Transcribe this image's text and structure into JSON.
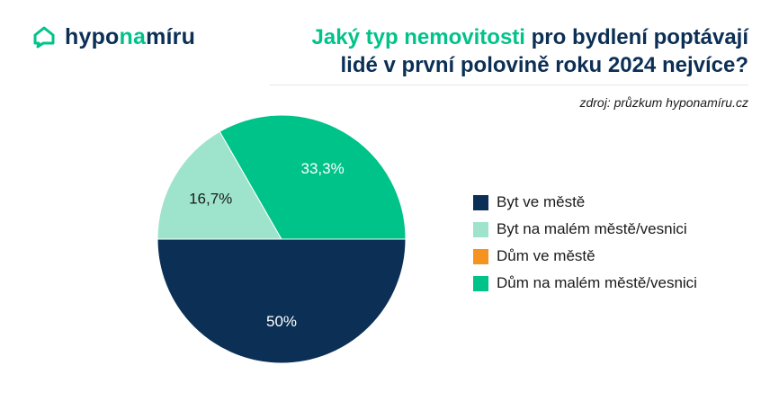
{
  "logo": {
    "text_part1": "hypo",
    "text_part2": "na",
    "text_part3": "míru"
  },
  "title": {
    "highlight": "Jaký typ nemovitosti",
    "rest_line1": " pro bydlení poptávají",
    "line2": "lidé v první polovině roku 2024 nejvíce?"
  },
  "source": "zdroj: průzkum hyponamíru.cz",
  "colors": {
    "navy": "#0b2f55",
    "light_green": "#9ee4cc",
    "orange": "#f6921e",
    "green": "#00c389"
  },
  "chart_data": {
    "type": "pie",
    "start_angle_deg": 0,
    "direction": "clockwise",
    "slices": [
      {
        "label": "Byt ve městě",
        "value": 50,
        "display": "50%",
        "color": "#0b2f55",
        "label_color": "#ffffff"
      },
      {
        "label": "Byt na malém městě/vesnici",
        "value": 16.7,
        "display": "16,7%",
        "color": "#9ee4cc",
        "label_color": "#1b1b1b"
      },
      {
        "label": "Dům ve městě",
        "value": 0,
        "display": "",
        "color": "#f6921e",
        "label_color": "#1b1b1b"
      },
      {
        "label": "Dům na malém městě/vesnici",
        "value": 33.3,
        "display": "33,3%",
        "color": "#00c389",
        "label_color": "#ffffff"
      }
    ],
    "legend_position": "right"
  }
}
